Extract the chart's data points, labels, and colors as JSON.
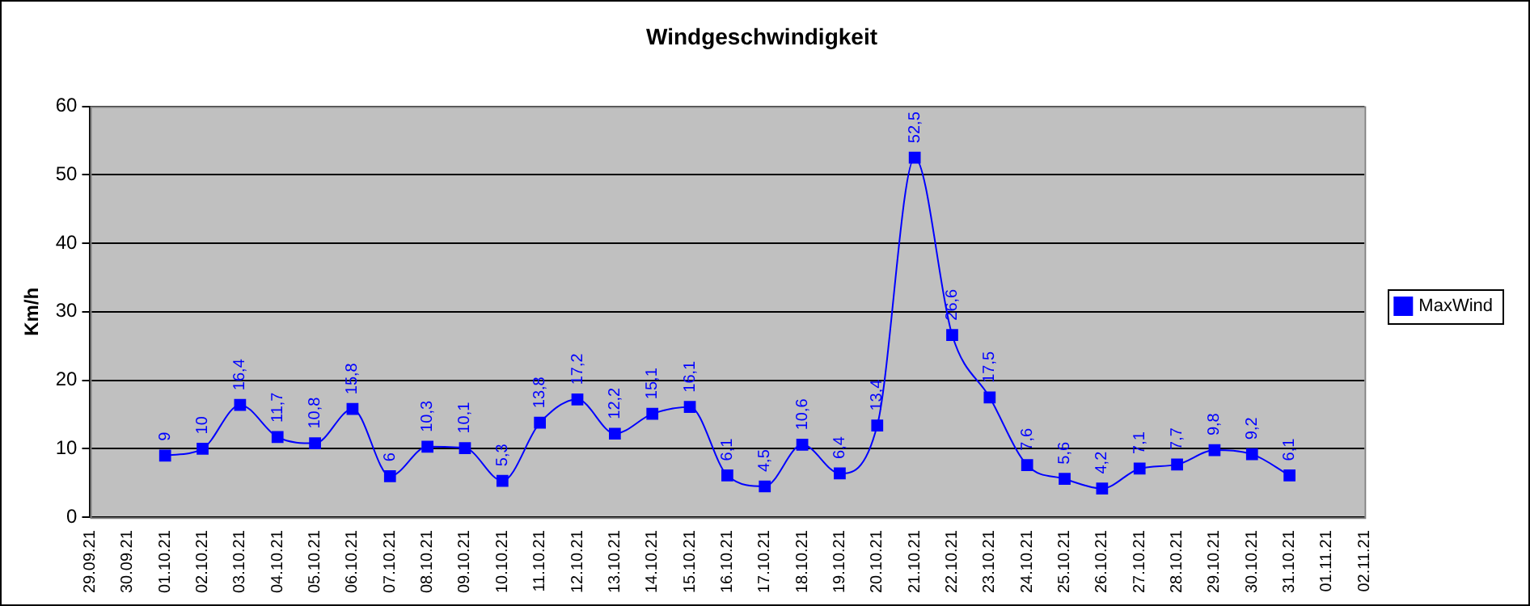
{
  "chart_data": {
    "type": "line",
    "title": "Windgeschwindigkeit",
    "ylabel": "Km/h",
    "categories": [
      "29.09.21",
      "30.09.21",
      "01.10.21",
      "02.10.21",
      "03.10.21",
      "04.10.21",
      "05.10.21",
      "06.10.21",
      "07.10.21",
      "08.10.21",
      "09.10.21",
      "10.10.21",
      "11.10.21",
      "12.10.21",
      "13.10.21",
      "14.10.21",
      "15.10.21",
      "16.10.21",
      "17.10.21",
      "18.10.21",
      "19.10.21",
      "20.10.21",
      "21.10.21",
      "22.10.21",
      "23.10.21",
      "24.10.21",
      "25.10.21",
      "26.10.21",
      "27.10.21",
      "28.10.21",
      "29.10.21",
      "30.10.21",
      "31.10.21",
      "01.11.21",
      "02.11.21"
    ],
    "series": [
      {
        "name": "MaxWind",
        "color": "#0000ff",
        "values": [
          null,
          null,
          9,
          10,
          16.4,
          11.7,
          10.8,
          15.8,
          6,
          10.3,
          10.1,
          5.3,
          13.8,
          17.2,
          12.2,
          15.1,
          16.1,
          6.1,
          4.5,
          10.6,
          6.4,
          13.4,
          52.5,
          26.6,
          17.5,
          7.6,
          5.6,
          4.2,
          7.1,
          7.7,
          9.8,
          9.2,
          6.1,
          null,
          null
        ],
        "value_labels": [
          null,
          null,
          "9",
          "10",
          "16,4",
          "11,7",
          "10,8",
          "15,8",
          "6",
          "10,3",
          "10,1",
          "5,3",
          "13,8",
          "17,2",
          "12,2",
          "15,1",
          "16,1",
          "6,1",
          "4,5",
          "10,6",
          "6,4",
          "13,4",
          "52,5",
          "26,6",
          "17,5",
          "7,6",
          "5,6",
          "4,2",
          "7,1",
          "7,7",
          "9,8",
          "9,2",
          "6,1",
          null,
          null
        ]
      }
    ],
    "ylim": [
      0,
      60
    ],
    "yticks": [
      0,
      10,
      20,
      30,
      40,
      50,
      60
    ],
    "grid": "y",
    "legend": "right",
    "marker": "square",
    "line_style": "solid"
  }
}
